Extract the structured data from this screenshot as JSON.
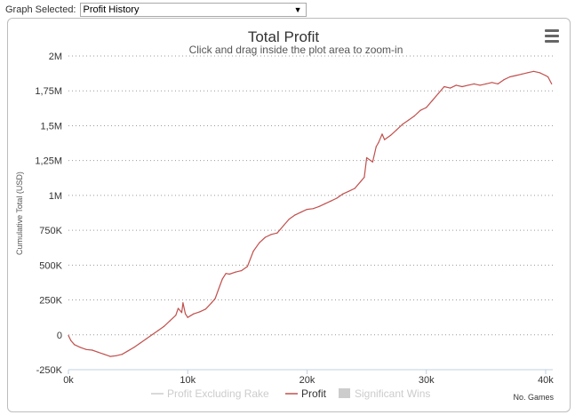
{
  "selector": {
    "label": "Graph Selected:",
    "value": "Profit History"
  },
  "chart_data": {
    "type": "line",
    "title": "Total Profit",
    "subtitle": "Click and drag inside the plot area to zoom-in",
    "ylabel": "Cumulative Total (USD)",
    "xlabel": "No. Games",
    "ylim": [
      -250000,
      2000000
    ],
    "xlim": [
      0,
      40600
    ],
    "yticks": [
      -250000,
      0,
      250000,
      500000,
      750000,
      1000000,
      1250000,
      1500000,
      1750000,
      2000000
    ],
    "ytick_labels": [
      "-250K",
      "0",
      "250K",
      "500K",
      "750K",
      "1M",
      "1,25M",
      "1,5M",
      "1,75M",
      "2M"
    ],
    "xticks": [
      0,
      10000,
      20000,
      30000,
      40000
    ],
    "xtick_labels": [
      "0k",
      "10k",
      "20k",
      "30k",
      "40k"
    ],
    "grid": true,
    "legend_position": "bottom",
    "legend": [
      {
        "name": "Profit Excluding Rake",
        "color": "#cccccc",
        "marker": "line"
      },
      {
        "name": "Profit",
        "color": "#c0504d",
        "marker": "line"
      },
      {
        "name": "Significant Wins",
        "color": "#cccccc",
        "marker": "square"
      }
    ],
    "series": [
      {
        "name": "Profit",
        "color": "#c0504d",
        "x": [
          0,
          200,
          500,
          1000,
          1500,
          2000,
          2500,
          3000,
          3500,
          4000,
          4500,
          5000,
          5500,
          6000,
          6500,
          7000,
          7500,
          8000,
          8500,
          9000,
          9200,
          9500,
          9600,
          9800,
          10000,
          10500,
          11000,
          11500,
          12000,
          12300,
          12600,
          12900,
          13200,
          13500,
          14000,
          14500,
          15000,
          15500,
          16000,
          16500,
          17000,
          17500,
          18000,
          18500,
          19000,
          19500,
          20000,
          20500,
          21000,
          21500,
          22000,
          22500,
          23000,
          23500,
          24000,
          24500,
          24800,
          25000,
          25500,
          25800,
          26000,
          26300,
          26500,
          27000,
          27500,
          28000,
          28500,
          29000,
          29500,
          30000,
          30500,
          31000,
          31500,
          32000,
          32500,
          33000,
          33500,
          34000,
          34500,
          35000,
          35500,
          36000,
          36500,
          37000,
          37500,
          38000,
          38500,
          39000,
          39500,
          40000,
          40200,
          40500
        ],
        "values": [
          -5000,
          -40000,
          -70000,
          -90000,
          -105000,
          -110000,
          -125000,
          -140000,
          -155000,
          -150000,
          -140000,
          -115000,
          -90000,
          -60000,
          -30000,
          0,
          30000,
          60000,
          100000,
          140000,
          190000,
          160000,
          230000,
          150000,
          125000,
          150000,
          165000,
          185000,
          230000,
          260000,
          330000,
          400000,
          440000,
          435000,
          450000,
          460000,
          490000,
          600000,
          660000,
          700000,
          720000,
          730000,
          780000,
          830000,
          860000,
          880000,
          900000,
          905000,
          920000,
          940000,
          960000,
          980000,
          1010000,
          1030000,
          1050000,
          1100000,
          1130000,
          1270000,
          1240000,
          1350000,
          1380000,
          1440000,
          1400000,
          1430000,
          1470000,
          1510000,
          1540000,
          1570000,
          1610000,
          1630000,
          1680000,
          1730000,
          1780000,
          1770000,
          1790000,
          1780000,
          1790000,
          1800000,
          1790000,
          1800000,
          1810000,
          1800000,
          1830000,
          1850000,
          1860000,
          1870000,
          1880000,
          1890000,
          1880000,
          1860000,
          1850000,
          1800000
        ]
      }
    ]
  },
  "menu": {
    "icon": "hamburger-menu-icon"
  }
}
